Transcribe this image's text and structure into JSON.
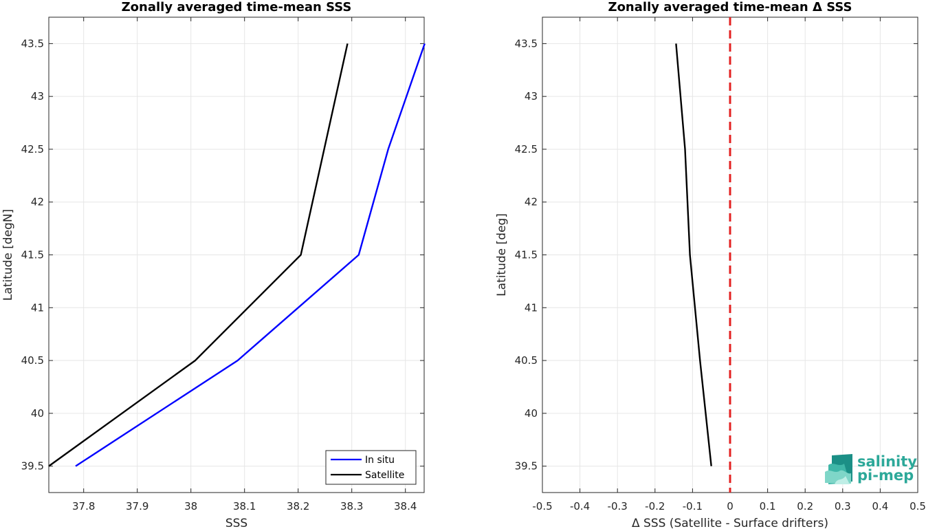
{
  "colors": {
    "insitu": "#0000ff",
    "satellite": "#000000",
    "zero_line": "#e32222",
    "grid": "#e6e6e6",
    "logo": "#2ca899"
  },
  "logo": {
    "line1": "salinity",
    "line2": "pi-mep",
    "icon": "salinity-wave-logo-icon"
  },
  "chart_data": [
    {
      "type": "line",
      "title": "Zonally averaged time-mean SSS",
      "xlabel": "SSS",
      "ylabel": "Latitude [degN]",
      "xlim": [
        37.735,
        38.435
      ],
      "ylim": [
        39.25,
        43.75
      ],
      "xticks": [
        37.8,
        37.9,
        38.0,
        38.1,
        38.2,
        38.3,
        38.4
      ],
      "xtick_labels": [
        "37.8",
        "37.9",
        "38",
        "38.1",
        "38.2",
        "38.3",
        "38.4"
      ],
      "yticks": [
        39.5,
        40,
        40.5,
        41,
        41.5,
        42,
        42.5,
        43,
        43.5
      ],
      "ytick_labels": [
        "39.5",
        "40",
        "40.5",
        "41",
        "41.5",
        "42",
        "42.5",
        "43",
        "43.5"
      ],
      "grid": true,
      "legend": "bottom-right",
      "series": [
        {
          "name": "In situ",
          "color_key": "insitu",
          "points": [
            [
              37.785,
              39.5
            ],
            [
              38.087,
              40.5
            ],
            [
              38.313,
              41.5
            ],
            [
              38.368,
              42.5
            ],
            [
              38.436,
              43.5
            ]
          ]
        },
        {
          "name": "Satellite",
          "color_key": "satellite",
          "points": [
            [
              37.735,
              39.5
            ],
            [
              38.008,
              40.5
            ],
            [
              38.205,
              41.5
            ],
            [
              38.292,
              43.5
            ]
          ]
        }
      ]
    },
    {
      "type": "line",
      "title": "Zonally averaged time-mean Δ SSS",
      "xlabel": "Δ SSS (Satellite - Surface drifters)",
      "ylabel": "Latitude [deg]",
      "xlim": [
        -0.5,
        0.5
      ],
      "ylim": [
        39.25,
        43.75
      ],
      "xticks": [
        -0.5,
        -0.4,
        -0.3,
        -0.2,
        -0.1,
        0,
        0.1,
        0.2,
        0.3,
        0.4,
        0.5
      ],
      "xtick_labels": [
        "-0.5",
        "-0.4",
        "-0.3",
        "-0.2",
        "-0.1",
        "0",
        "0.1",
        "0.2",
        "0.3",
        "0.4",
        "0.5"
      ],
      "yticks": [
        39.5,
        40,
        40.5,
        41,
        41.5,
        42,
        42.5,
        43,
        43.5
      ],
      "ytick_labels": [
        "39.5",
        "40",
        "40.5",
        "41",
        "41.5",
        "42",
        "42.5",
        "43",
        "43.5"
      ],
      "grid": true,
      "reference_line": {
        "x": 0,
        "style": "dashed",
        "color_key": "zero_line"
      },
      "series": [
        {
          "color_key": "satellite",
          "points": [
            [
              -0.05,
              39.5
            ],
            [
              -0.08,
              40.5
            ],
            [
              -0.107,
              41.5
            ],
            [
              -0.12,
              42.5
            ],
            [
              -0.144,
              43.5
            ]
          ]
        }
      ]
    }
  ]
}
